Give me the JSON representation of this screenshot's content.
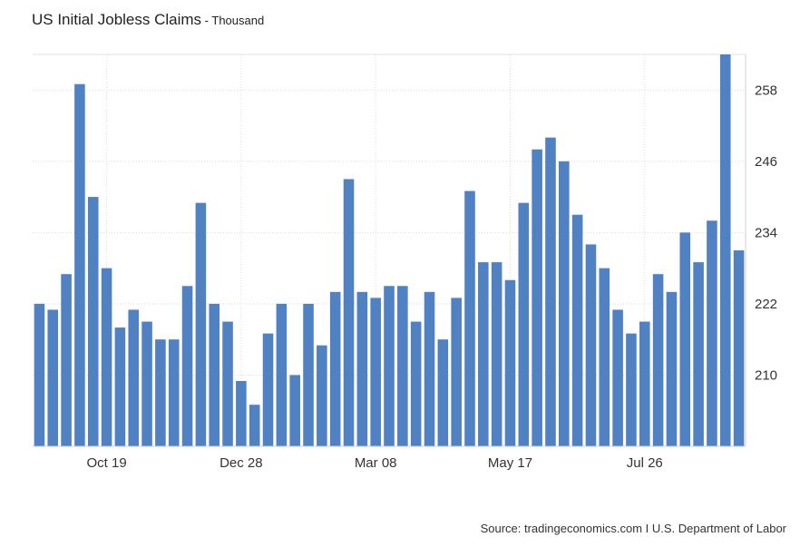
{
  "chart_data": {
    "type": "bar",
    "title": "US Initial Jobless Claims",
    "subtitle": "Thousand",
    "ylim": [
      198,
      264
    ],
    "yticks": [
      210,
      222,
      234,
      246,
      258
    ],
    "xtick_labels": [
      {
        "label": "Oct 19",
        "index": 5
      },
      {
        "label": "Dec 28",
        "index": 15
      },
      {
        "label": "Mar 08",
        "index": 25
      },
      {
        "label": "May 17",
        "index": 35
      },
      {
        "label": "Jul 26",
        "index": 45
      }
    ],
    "grid": true,
    "color": "#4f81c3",
    "values": [
      222,
      221,
      227,
      259,
      240,
      228,
      218,
      221,
      219,
      216,
      216,
      225,
      239,
      222,
      219,
      209,
      205,
      217,
      222,
      210,
      222,
      215,
      224,
      243,
      224,
      223,
      225,
      225,
      219,
      224,
      216,
      223,
      241,
      229,
      229,
      226,
      239,
      248,
      250,
      246,
      237,
      232,
      228,
      221,
      217,
      219,
      227,
      224,
      234,
      229,
      236,
      264,
      231
    ]
  },
  "source": "Source: tradingeconomics.com I U.S. Department of Labor"
}
